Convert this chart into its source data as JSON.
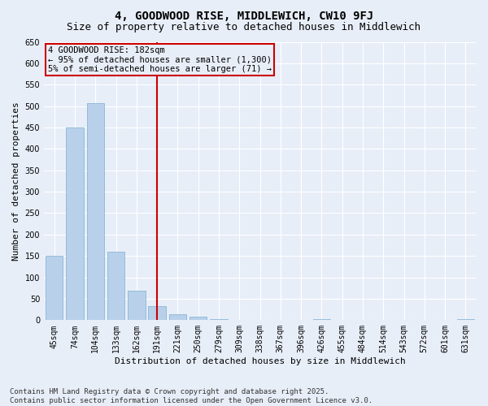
{
  "title": "4, GOODWOOD RISE, MIDDLEWICH, CW10 9FJ",
  "subtitle": "Size of property relative to detached houses in Middlewich",
  "xlabel": "Distribution of detached houses by size in Middlewich",
  "ylabel": "Number of detached properties",
  "categories": [
    "45sqm",
    "74sqm",
    "104sqm",
    "133sqm",
    "162sqm",
    "191sqm",
    "221sqm",
    "250sqm",
    "279sqm",
    "309sqm",
    "338sqm",
    "367sqm",
    "396sqm",
    "426sqm",
    "455sqm",
    "484sqm",
    "514sqm",
    "543sqm",
    "572sqm",
    "601sqm",
    "631sqm"
  ],
  "values": [
    150,
    450,
    507,
    160,
    68,
    32,
    13,
    8,
    3,
    0,
    0,
    0,
    0,
    3,
    0,
    0,
    0,
    0,
    0,
    0,
    3
  ],
  "bar_color": "#b8d0ea",
  "bar_edge_color": "#7aafd4",
  "vline_x": 5,
  "vline_color": "#cc0000",
  "annotation_text": "4 GOODWOOD RISE: 182sqm\n← 95% of detached houses are smaller (1,300)\n5% of semi-detached houses are larger (71) →",
  "annotation_box_color": "#cc0000",
  "ylim": [
    0,
    650
  ],
  "yticks": [
    0,
    50,
    100,
    150,
    200,
    250,
    300,
    350,
    400,
    450,
    500,
    550,
    600,
    650
  ],
  "bg_color": "#e8eef8",
  "grid_color": "#ffffff",
  "footer": "Contains HM Land Registry data © Crown copyright and database right 2025.\nContains public sector information licensed under the Open Government Licence v3.0.",
  "title_fontsize": 10,
  "subtitle_fontsize": 9,
  "axis_label_fontsize": 8,
  "tick_fontsize": 7,
  "annotation_fontsize": 7.5,
  "footer_fontsize": 6.5
}
